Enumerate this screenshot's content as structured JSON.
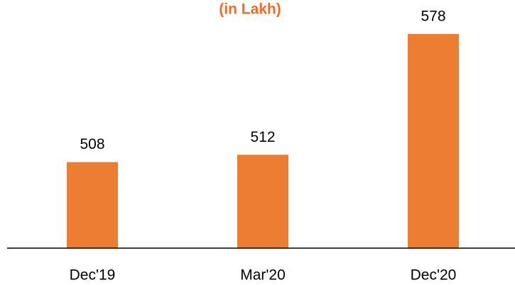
{
  "chart_data": {
    "type": "bar",
    "title": "(in Lakh)",
    "categories": [
      "Dec'19",
      "Mar'20",
      "Dec'20"
    ],
    "values": [
      508,
      512,
      578
    ],
    "color": "#ed7d31",
    "ylim": [
      461,
      595
    ]
  }
}
